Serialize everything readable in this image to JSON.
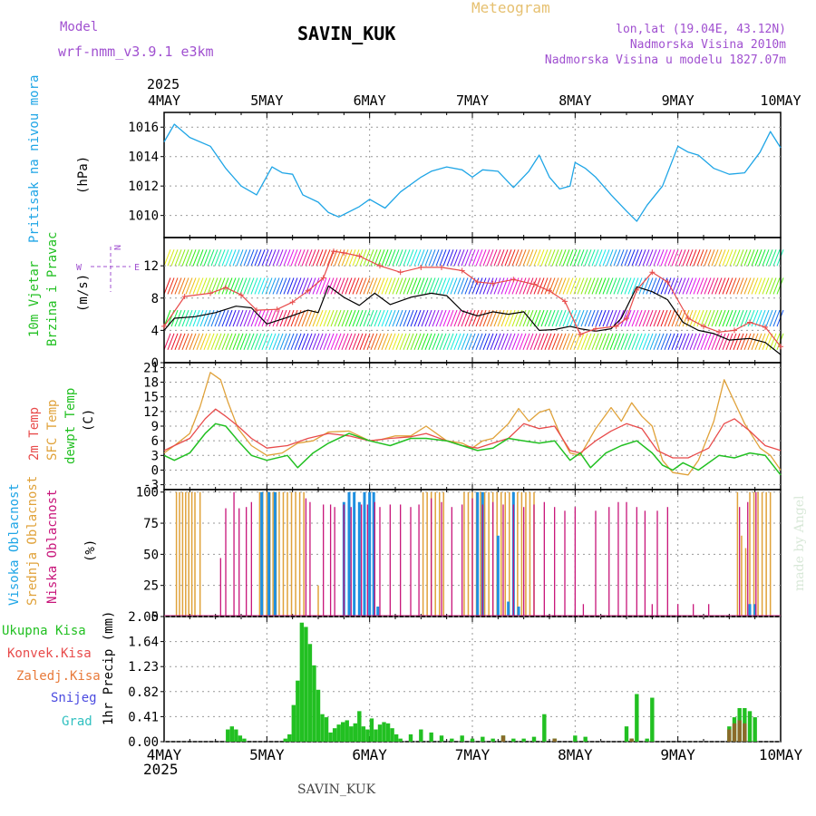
{
  "header": {
    "model_label": "Model",
    "model_name": "wrf-nmm_v3.9.1 e3km",
    "station": "SAVIN_KUK",
    "product": "Meteogram",
    "coords": "lon,lat (19.04E, 43.12N)",
    "altitude": "Nadmorska Visina 2010m",
    "model_altitude": "Nadmorska Visina u modelu 1827.07m",
    "footer_station": "SAVIN_KUK",
    "watermark": "made by Angel"
  },
  "colors": {
    "pressure": "#1ea5e6",
    "temp2m": "#e84b4b",
    "sfc": "#e0a23a",
    "dew": "#22c022",
    "high": "#1e8fe0",
    "mid": "#e0a23a",
    "low": "#c8157a",
    "rain": "#22c022",
    "grid": "#999999"
  },
  "time_axis": {
    "year": "2025",
    "ticks": [
      "4MAY",
      "5MAY",
      "6MAY",
      "7MAY",
      "8MAY",
      "9MAY",
      "10MAY"
    ]
  },
  "chart_data": [
    {
      "type": "line",
      "id": "pressure",
      "ylabel": "Pritisak na nivou mora",
      "unit": "(hPa)",
      "ylim": [
        1008.5,
        1017
      ],
      "yticks": [
        1010,
        1012,
        1014,
        1016
      ],
      "series": [
        {
          "name": "pressure",
          "x": [
            0,
            0.1,
            0.25,
            0.45,
            0.6,
            0.75,
            0.9,
            1.05,
            1.15,
            1.25,
            1.35,
            1.5,
            1.6,
            1.7,
            1.9,
            2.0,
            2.15,
            2.3,
            2.5,
            2.6,
            2.75,
            2.9,
            3.0,
            3.1,
            3.25,
            3.4,
            3.55,
            3.65,
            3.75,
            3.85,
            3.95,
            4.0,
            4.1,
            4.2,
            4.35,
            4.5,
            4.6,
            4.7,
            4.85,
            5.0,
            5.1,
            5.2,
            5.35,
            5.5,
            5.65,
            5.8,
            5.9,
            6.0
          ],
          "values": [
            1015.0,
            1016.2,
            1015.3,
            1014.7,
            1013.2,
            1012.0,
            1011.4,
            1013.3,
            1012.9,
            1012.8,
            1011.4,
            1010.9,
            1010.2,
            1009.9,
            1010.6,
            1011.1,
            1010.5,
            1011.6,
            1012.6,
            1013.0,
            1013.3,
            1013.1,
            1012.6,
            1013.1,
            1013.0,
            1011.9,
            1013.0,
            1014.1,
            1012.6,
            1011.8,
            1012.0,
            1013.6,
            1013.2,
            1012.6,
            1011.4,
            1010.3,
            1009.6,
            1010.7,
            1012.0,
            1014.7,
            1014.3,
            1014.1,
            1013.2,
            1012.8,
            1012.9,
            1014.3,
            1015.7,
            1014.6
          ]
        }
      ]
    },
    {
      "type": "line",
      "id": "wind",
      "ylabel": "10m Vjetar",
      "ylabel2": "Brzina i Pravac",
      "unit": "(m/s)",
      "compass": {
        "n": "N",
        "w": "W",
        "e": "E"
      },
      "ylim": [
        0,
        15.5
      ],
      "yticks": [
        0,
        4,
        8,
        12
      ],
      "series": [
        {
          "name": "wind-speed",
          "x": [
            0,
            0.1,
            0.3,
            0.5,
            0.7,
            0.85,
            1.0,
            1.2,
            1.4,
            1.5,
            1.6,
            1.75,
            1.9,
            2.05,
            2.2,
            2.4,
            2.6,
            2.75,
            2.9,
            3.05,
            3.2,
            3.35,
            3.5,
            3.65,
            3.8,
            3.95,
            4.05,
            4.2,
            4.35,
            4.45,
            4.6,
            4.75,
            4.9,
            5.05,
            5.2,
            5.35,
            5.5,
            5.7,
            5.85,
            6.0
          ],
          "values": [
            4.0,
            5.5,
            5.7,
            6.2,
            7.0,
            6.8,
            4.8,
            5.6,
            6.5,
            6.2,
            9.5,
            8.1,
            7.1,
            8.6,
            7.2,
            8.1,
            8.6,
            8.3,
            6.4,
            5.8,
            6.3,
            6.0,
            6.3,
            4.0,
            4.1,
            4.5,
            4.2,
            3.9,
            4.2,
            5.5,
            9.4,
            8.8,
            7.8,
            5.0,
            4.0,
            3.6,
            2.8,
            3.0,
            2.5,
            1.0
          ]
        },
        {
          "name": "wind-gust",
          "x": [
            0,
            0.2,
            0.45,
            0.6,
            0.75,
            0.9,
            1.1,
            1.25,
            1.4,
            1.55,
            1.65,
            1.75,
            1.9,
            2.1,
            2.3,
            2.5,
            2.7,
            2.9,
            3.05,
            3.2,
            3.4,
            3.6,
            3.75,
            3.9,
            4.05,
            4.2,
            4.4,
            4.5,
            4.6,
            4.75,
            4.9,
            5.1,
            5.25,
            5.4,
            5.55,
            5.7,
            5.85,
            6.0
          ],
          "values": [
            4.5,
            8.2,
            8.6,
            9.3,
            8.4,
            6.5,
            6.6,
            7.5,
            8.9,
            10.5,
            13.8,
            13.6,
            13.2,
            12.0,
            11.2,
            11.8,
            11.8,
            11.4,
            10.0,
            9.8,
            10.3,
            9.7,
            8.9,
            7.6,
            3.5,
            4.2,
            4.5,
            5.5,
            9.0,
            11.2,
            10.0,
            5.5,
            4.5,
            3.8,
            4.0,
            5.0,
            4.4,
            2.0
          ]
        }
      ]
    },
    {
      "type": "line",
      "id": "temperature",
      "ylabel": "2m Temp",
      "ylabel2": "SFC Temp",
      "ylabel3": "dewpt Temp",
      "unit": "(C)",
      "ylim": [
        -4,
        22
      ],
      "yticks": [
        -3,
        0,
        3,
        6,
        9,
        12,
        15,
        18,
        21
      ],
      "series": [
        {
          "name": "SFC Temp",
          "x": [
            0,
            0.1,
            0.25,
            0.35,
            0.45,
            0.55,
            0.62,
            0.72,
            0.85,
            1.0,
            1.15,
            1.3,
            1.45,
            1.6,
            1.8,
            2.0,
            2.1,
            2.25,
            2.4,
            2.55,
            2.75,
            2.9,
            3.0,
            3.1,
            3.2,
            3.35,
            3.45,
            3.55,
            3.65,
            3.75,
            3.85,
            3.95,
            4.05,
            4.2,
            4.35,
            4.45,
            4.55,
            4.65,
            4.75,
            4.85,
            4.95,
            5.1,
            5.2,
            5.35,
            5.45,
            5.55,
            5.65,
            5.8,
            5.9,
            6.0
          ],
          "values": [
            3.5,
            5.0,
            7.5,
            13.0,
            20.0,
            18.5,
            14.0,
            8.5,
            5.0,
            3.0,
            3.5,
            5.5,
            6.0,
            7.8,
            8.0,
            6.0,
            6.2,
            7.0,
            7.0,
            9.0,
            6.0,
            5.5,
            4.5,
            6.0,
            6.5,
            9.5,
            12.6,
            10.0,
            11.8,
            12.5,
            7.5,
            3.5,
            3.0,
            8.5,
            12.8,
            10.0,
            13.8,
            11.0,
            9.0,
            2.0,
            -0.5,
            -1.0,
            2.0,
            10.0,
            18.5,
            14.0,
            9.5,
            4.5,
            3.0,
            0.0
          ]
        },
        {
          "name": "2m Temp",
          "x": [
            0,
            0.1,
            0.25,
            0.4,
            0.5,
            0.6,
            0.72,
            0.85,
            1.0,
            1.2,
            1.4,
            1.6,
            1.8,
            2.0,
            2.2,
            2.4,
            2.55,
            2.75,
            2.9,
            3.05,
            3.2,
            3.35,
            3.5,
            3.65,
            3.8,
            3.95,
            4.05,
            4.2,
            4.35,
            4.5,
            4.65,
            4.8,
            4.95,
            5.1,
            5.3,
            5.45,
            5.55,
            5.7,
            5.85,
            6.0
          ],
          "values": [
            4.0,
            5.0,
            6.5,
            10.5,
            12.5,
            11.0,
            9.0,
            6.5,
            4.5,
            5.0,
            6.5,
            7.5,
            7.0,
            6.0,
            6.5,
            6.8,
            7.5,
            6.0,
            5.0,
            4.5,
            5.5,
            6.5,
            9.5,
            8.5,
            9.0,
            4.0,
            3.5,
            6.0,
            8.0,
            9.5,
            8.5,
            4.0,
            2.5,
            2.5,
            4.5,
            9.5,
            10.5,
            8.0,
            5.0,
            4.0
          ]
        },
        {
          "name": "dewpt Temp",
          "x": [
            0,
            0.1,
            0.25,
            0.4,
            0.5,
            0.6,
            0.72,
            0.85,
            1.0,
            1.2,
            1.3,
            1.45,
            1.6,
            1.8,
            2.0,
            2.2,
            2.4,
            2.55,
            2.75,
            2.9,
            3.05,
            3.2,
            3.35,
            3.5,
            3.65,
            3.8,
            3.95,
            4.05,
            4.15,
            4.3,
            4.45,
            4.6,
            4.75,
            4.85,
            4.95,
            5.05,
            5.2,
            5.4,
            5.55,
            5.7,
            5.85,
            6.0
          ],
          "values": [
            3.0,
            2.0,
            3.5,
            7.5,
            9.5,
            9.0,
            6.0,
            3.0,
            2.0,
            3.0,
            0.5,
            3.5,
            5.5,
            7.5,
            6.0,
            5.0,
            6.5,
            6.5,
            6.0,
            5.0,
            4.0,
            4.5,
            6.5,
            6.0,
            5.5,
            6.0,
            2.0,
            3.5,
            0.5,
            3.5,
            5.0,
            6.0,
            3.5,
            1.0,
            0.0,
            1.5,
            0.0,
            3.0,
            2.5,
            3.5,
            3.0,
            -1.0
          ]
        }
      ]
    },
    {
      "type": "bar",
      "id": "clouds",
      "ylabel": "Visoka Oblacnost",
      "ylabel2": "Srednja Oblacnost",
      "ylabel3": "Niska Oblacnost",
      "unit": "(%)",
      "ylim": [
        0,
        102
      ],
      "yticks": [
        0,
        25,
        50,
        75,
        100
      ],
      "series": [
        {
          "name": "Srednja Oblacnost",
          "x": [
            0.12,
            0.15,
            0.18,
            0.21,
            0.24,
            0.27,
            0.3,
            0.35,
            0.93,
            0.96,
            1.0,
            1.03,
            1.06,
            1.09,
            1.12,
            1.16,
            1.2,
            1.24,
            1.28,
            1.32,
            1.36,
            1.5,
            2.52,
            2.56,
            2.6,
            2.64,
            2.68,
            2.72,
            2.92,
            2.96,
            3.0,
            3.04,
            3.08,
            3.12,
            3.16,
            3.2,
            3.24,
            3.28,
            3.32,
            3.36,
            3.4,
            3.44,
            3.48,
            3.52,
            3.56,
            3.6,
            5.58,
            5.62,
            5.66,
            5.7,
            5.74,
            5.78,
            5.82,
            5.86,
            5.9
          ],
          "values": [
            100,
            100,
            100,
            100,
            100,
            100,
            100,
            100,
            100,
            100,
            100,
            100,
            100,
            100,
            100,
            100,
            100,
            100,
            100,
            100,
            100,
            25,
            100,
            100,
            100,
            100,
            100,
            100,
            100,
            100,
            100,
            100,
            100,
            100,
            100,
            100,
            100,
            100,
            100,
            100,
            100,
            100,
            100,
            100,
            100,
            100,
            100,
            65,
            55,
            100,
            100,
            100,
            100,
            100,
            100
          ]
        },
        {
          "name": "Visoka Oblacnost",
          "x": [
            0.95,
            1.02,
            1.08,
            1.75,
            1.8,
            1.85,
            1.9,
            1.95,
            2.0,
            2.04,
            2.08,
            3.05,
            3.1,
            3.25,
            3.35,
            3.4,
            3.45,
            5.7,
            5.75
          ],
          "values": [
            100,
            100,
            100,
            92,
            100,
            100,
            92,
            100,
            100,
            100,
            8,
            100,
            100,
            65,
            12,
            100,
            8,
            10,
            10
          ]
        },
        {
          "name": "Niska Oblacnost",
          "x": [
            0.55,
            0.6,
            0.68,
            0.73,
            0.8,
            0.85,
            1.38,
            1.42,
            1.55,
            1.62,
            1.66,
            1.75,
            1.82,
            1.92,
            1.98,
            2.05,
            2.1,
            2.2,
            2.3,
            2.4,
            2.48,
            2.6,
            2.7,
            2.8,
            2.9,
            3.0,
            3.1,
            3.2,
            3.3,
            3.4,
            3.5,
            3.6,
            3.7,
            3.8,
            3.9,
            4.0,
            4.08,
            4.2,
            4.33,
            4.42,
            4.5,
            4.6,
            4.68,
            4.75,
            4.8,
            4.9,
            5.0,
            5.15,
            5.3,
            5.6,
            5.68,
            5.76
          ],
          "values": [
            47,
            87,
            100,
            87,
            88,
            92,
            95,
            92,
            90,
            90,
            88,
            90,
            88,
            90,
            90,
            92,
            88,
            90,
            90,
            88,
            90,
            95,
            92,
            88,
            90,
            95,
            90,
            92,
            90,
            90,
            88,
            90,
            92,
            88,
            85,
            88,
            10,
            85,
            88,
            92,
            92,
            88,
            85,
            10,
            85,
            88,
            10,
            10,
            10,
            88,
            92,
            100
          ]
        }
      ]
    },
    {
      "type": "bar",
      "id": "precipitation",
      "ylabel": "1hr Precip (mm)",
      "legend": [
        "Ukupna Kisa",
        "Konvek.Kisa",
        "Zaledj.Kisa",
        "Snijeg",
        "Grad"
      ],
      "ylim": [
        0,
        2.05
      ],
      "yticks": [
        0,
        0.41,
        0.82,
        1.23,
        1.64,
        2.05
      ],
      "series": [
        {
          "name": "Ukupna Kisa",
          "x": [
            0.62,
            0.66,
            0.7,
            0.74,
            0.78,
            1.18,
            1.22,
            1.26,
            1.3,
            1.34,
            1.38,
            1.42,
            1.46,
            1.5,
            1.54,
            1.58,
            1.62,
            1.66,
            1.7,
            1.74,
            1.78,
            1.82,
            1.86,
            1.9,
            1.94,
            1.98,
            2.02,
            2.06,
            2.1,
            2.14,
            2.18,
            2.22,
            2.26,
            2.3,
            2.4,
            2.5,
            2.6,
            2.7,
            2.8,
            2.9,
            3.0,
            3.1,
            3.2,
            3.3,
            3.4,
            3.5,
            3.6,
            3.7,
            3.8,
            4.0,
            4.1,
            4.5,
            4.55,
            4.6,
            4.7,
            4.75,
            5.5,
            5.55,
            5.6,
            5.65,
            5.7,
            5.75
          ],
          "values": [
            0.2,
            0.25,
            0.2,
            0.1,
            0.05,
            0.05,
            0.12,
            0.6,
            1.0,
            1.95,
            1.88,
            1.6,
            1.25,
            0.85,
            0.45,
            0.4,
            0.15,
            0.22,
            0.28,
            0.32,
            0.35,
            0.25,
            0.3,
            0.5,
            0.25,
            0.2,
            0.38,
            0.2,
            0.28,
            0.32,
            0.3,
            0.22,
            0.12,
            0.05,
            0.12,
            0.2,
            0.15,
            0.1,
            0.05,
            0.1,
            0.05,
            0.08,
            0.05,
            0.1,
            0.05,
            0.05,
            0.08,
            0.45,
            0.05,
            0.1,
            0.08,
            0.25,
            0.05,
            0.78,
            0.05,
            0.72,
            0.25,
            0.4,
            0.55,
            0.55,
            0.5,
            0.4
          ]
        },
        {
          "name": "Konvek.Kisa",
          "x": [
            3.3,
            3.8,
            4.55,
            5.5,
            5.55,
            5.6,
            5.65
          ],
          "values": [
            0.1,
            0.05,
            0.05,
            0.2,
            0.3,
            0.35,
            0.3
          ]
        }
      ]
    }
  ]
}
